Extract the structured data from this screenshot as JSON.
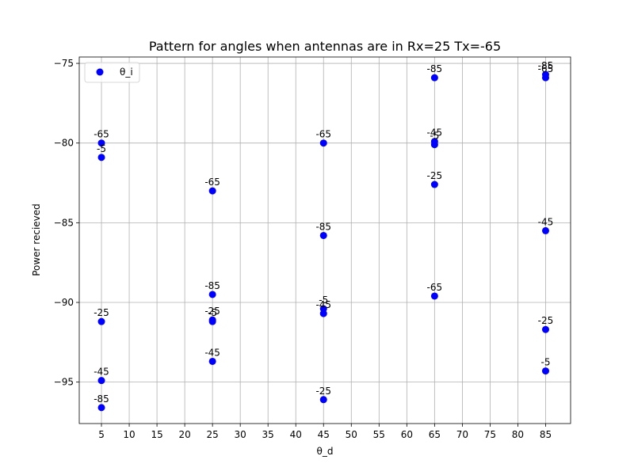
{
  "chart_data": {
    "type": "scatter",
    "title": "Pattern for angles when antennas are in Rx=25 Tx=-65",
    "xlabel": "θ_d",
    "ylabel": "Power recieved",
    "xlim": [
      1,
      89.5
    ],
    "ylim": [
      -97.6,
      -74.6
    ],
    "xticks": [
      5,
      10,
      15,
      20,
      25,
      30,
      35,
      40,
      45,
      50,
      55,
      60,
      65,
      70,
      75,
      80,
      85
    ],
    "yticks": [
      -95,
      -90,
      -85,
      -80,
      -75
    ],
    "grid": true,
    "legend": {
      "position": "top-left",
      "entries": [
        "θ_i"
      ]
    },
    "series": [
      {
        "name": "θ_i",
        "color": "#0000ff",
        "points": [
          {
            "x": 5,
            "y": -80.0,
            "label": "-65"
          },
          {
            "x": 5,
            "y": -80.9,
            "label": "-5"
          },
          {
            "x": 5,
            "y": -91.2,
            "label": "-25"
          },
          {
            "x": 5,
            "y": -94.9,
            "label": "-45"
          },
          {
            "x": 5,
            "y": -96.6,
            "label": "-85"
          },
          {
            "x": 25,
            "y": -83.0,
            "label": "-65"
          },
          {
            "x": 25,
            "y": -89.5,
            "label": "-85"
          },
          {
            "x": 25,
            "y": -91.1,
            "label": "-25"
          },
          {
            "x": 25,
            "y": -91.2,
            "label": "-5"
          },
          {
            "x": 25,
            "y": -93.7,
            "label": "-45"
          },
          {
            "x": 45,
            "y": -80.0,
            "label": "-65"
          },
          {
            "x": 45,
            "y": -85.8,
            "label": "-85"
          },
          {
            "x": 45,
            "y": -90.4,
            "label": "-5"
          },
          {
            "x": 45,
            "y": -90.7,
            "label": "-45"
          },
          {
            "x": 45,
            "y": -96.1,
            "label": "-25"
          },
          {
            "x": 65,
            "y": -75.9,
            "label": "-85"
          },
          {
            "x": 65,
            "y": -79.9,
            "label": "-45"
          },
          {
            "x": 65,
            "y": -80.1,
            "label": "-5"
          },
          {
            "x": 65,
            "y": -82.6,
            "label": "-25"
          },
          {
            "x": 65,
            "y": -89.6,
            "label": "-65"
          },
          {
            "x": 85,
            "y": -75.7,
            "label": "-85"
          },
          {
            "x": 85,
            "y": -75.9,
            "label": "-65"
          },
          {
            "x": 85,
            "y": -85.5,
            "label": "-45"
          },
          {
            "x": 85,
            "y": -91.7,
            "label": "-25"
          },
          {
            "x": 85,
            "y": -94.3,
            "label": "-5"
          }
        ]
      }
    ]
  }
}
